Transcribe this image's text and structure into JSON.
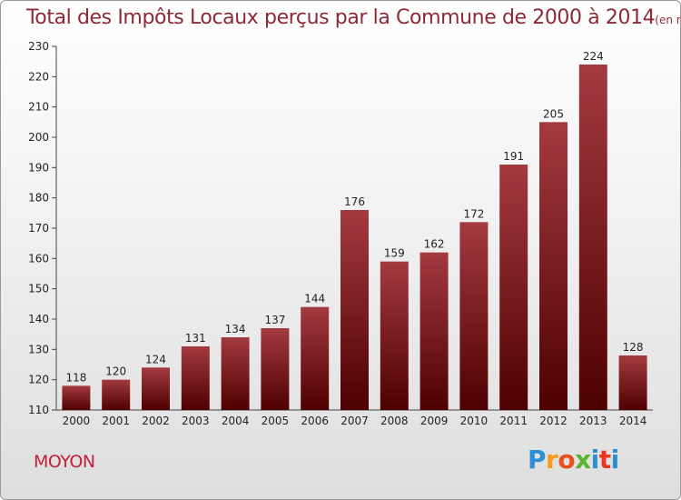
{
  "chart_data": {
    "type": "bar",
    "title": "Total des Impôts Locaux perçus par la Commune de 2000 à 2014",
    "unit_label": "(en milliers d'€)",
    "categories": [
      "2000",
      "2001",
      "2002",
      "2003",
      "2004",
      "2005",
      "2006",
      "2007",
      "2008",
      "2009",
      "2010",
      "2011",
      "2012",
      "2013",
      "2014"
    ],
    "values": [
      118,
      120,
      124,
      131,
      134,
      137,
      144,
      176,
      159,
      162,
      172,
      191,
      205,
      224,
      128
    ],
    "ylim": [
      110,
      230
    ],
    "yticks": [
      110,
      120,
      130,
      140,
      150,
      160,
      170,
      180,
      190,
      200,
      210,
      220,
      230
    ],
    "grid": false,
    "bar_color_top": "#a33a40",
    "bar_color_bottom": "#4e0000"
  },
  "footer": {
    "commune": "MOYON",
    "logo_text": "Proxiti"
  }
}
